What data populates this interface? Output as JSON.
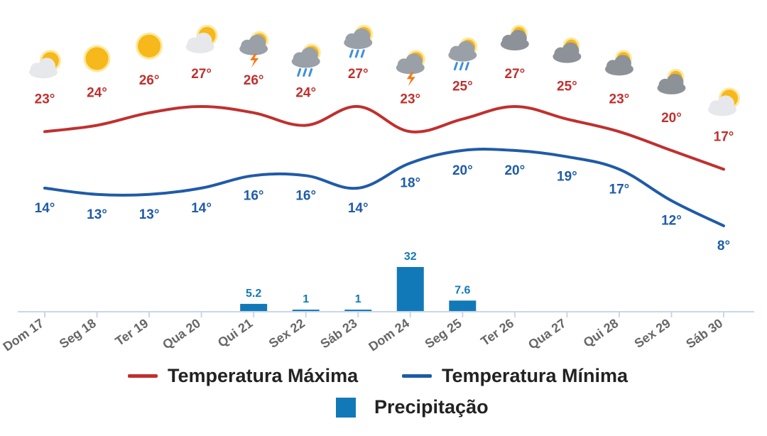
{
  "chart_data": {
    "type": "line",
    "categories": [
      "Dom 17",
      "Seg 18",
      "Ter 19",
      "Qua 20",
      "Qui 21",
      "Sex 22",
      "Sáb 23",
      "Dom 24",
      "Seg 25",
      "Ter 26",
      "Qua 27",
      "Qui 28",
      "Sex 29",
      "Sáb 30"
    ],
    "series": [
      {
        "name": "Temperatura Máxima",
        "type": "line",
        "color": "#c0302e",
        "values": [
          23,
          24,
          26,
          27,
          26,
          24,
          27,
          23,
          25,
          27,
          25,
          23,
          20,
          17
        ],
        "labels": [
          "23°",
          "24°",
          "26°",
          "27°",
          "26°",
          "24°",
          "27°",
          "23°",
          "25°",
          "27°",
          "25°",
          "23°",
          "20°",
          "17°"
        ]
      },
      {
        "name": "Temperatura Mínima",
        "type": "line",
        "color": "#1f5ba8",
        "values": [
          14,
          13,
          13,
          14,
          16,
          16,
          14,
          18,
          20,
          20,
          19,
          17,
          12,
          8
        ],
        "labels": [
          "14°",
          "13°",
          "13°",
          "14°",
          "16°",
          "16°",
          "14°",
          "18°",
          "20°",
          "20°",
          "19°",
          "17°",
          "12°",
          "8°"
        ]
      },
      {
        "name": "Precipitação",
        "type": "bar",
        "color": "#1279b8",
        "values": [
          0,
          0,
          0,
          0,
          5.2,
          1,
          1,
          32,
          7.6,
          0,
          0,
          0,
          0,
          0
        ],
        "labels": [
          "",
          "",
          "",
          "",
          "5.2",
          "1",
          "1",
          "32",
          "7.6",
          "",
          "",
          "",
          "",
          ""
        ]
      }
    ],
    "weather_icons": [
      "partly-cloudy-icon",
      "sunny-icon",
      "sunny-icon",
      "partly-cloudy-icon",
      "thunderstorm-icon",
      "rain-icon",
      "rain-icon",
      "thunderstorm-icon",
      "rain-icon",
      "cloudy-icon",
      "cloudy-icon",
      "cloudy-icon",
      "cloudy-icon",
      "partly-cloudy-icon"
    ],
    "grid": false,
    "legend": "bottom"
  },
  "legend": {
    "max_label": "Temperatura Máxima",
    "min_label": "Temperatura Mínima",
    "precip_label": "Precipitação"
  },
  "colors": {
    "max": "#c0302e",
    "min": "#1f5ba8",
    "precip": "#1279b8",
    "axis": "#c9d6ec",
    "tick_text": "#666666"
  }
}
